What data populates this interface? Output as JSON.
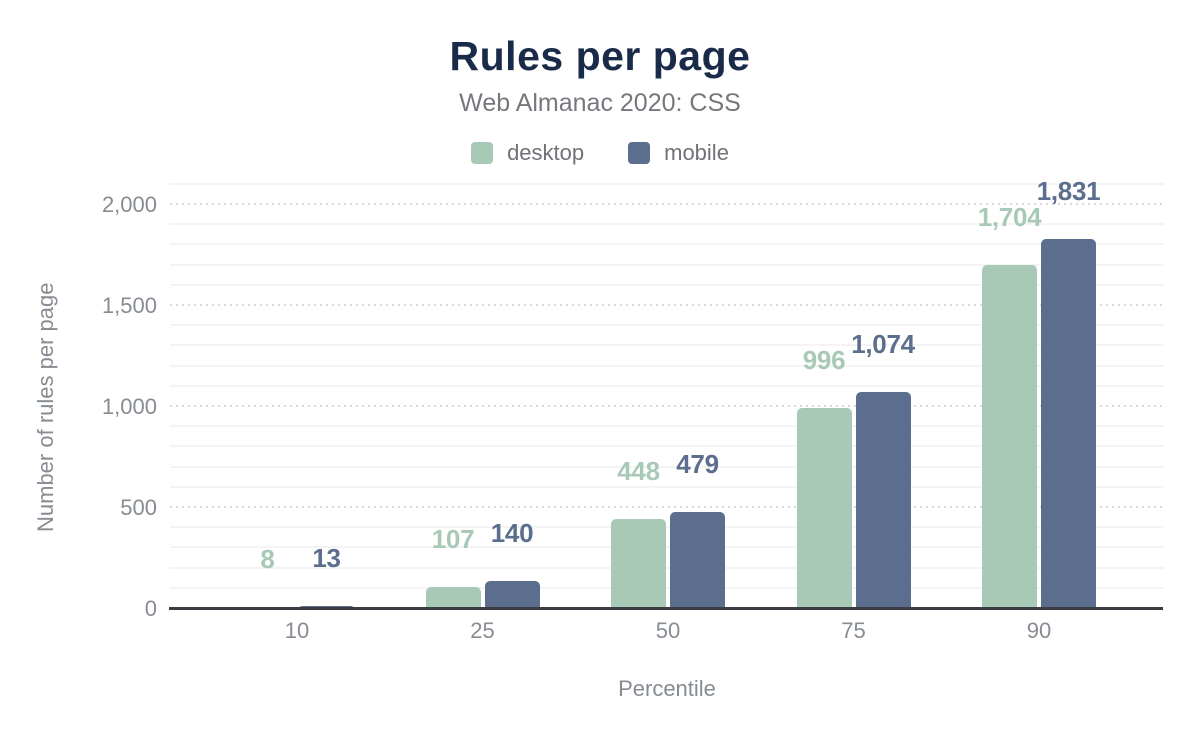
{
  "chart_data": {
    "type": "bar",
    "title": "Rules per page",
    "subtitle": "Web Almanac 2020: CSS",
    "xlabel": "Percentile",
    "ylabel": "Number of rules per page",
    "categories": [
      "10",
      "25",
      "50",
      "75",
      "90"
    ],
    "series": [
      {
        "name": "desktop",
        "color": "#a9c9b7",
        "values": [
          8,
          107,
          448,
          996,
          1704
        ],
        "labels": [
          "8",
          "107",
          "448",
          "996",
          "1,704"
        ]
      },
      {
        "name": "mobile",
        "color": "#5b6e8d",
        "values": [
          13,
          140,
          479,
          1074,
          1831
        ],
        "labels": [
          "13",
          "140",
          "479",
          "1,074",
          "1,831"
        ]
      }
    ],
    "ylim": [
      0,
      2000
    ],
    "yticks": [
      {
        "value": 0,
        "label": "0"
      },
      {
        "value": 500,
        "label": "500"
      },
      {
        "value": 1000,
        "label": "1,000"
      },
      {
        "value": 1500,
        "label": "1,500"
      },
      {
        "value": 2000,
        "label": "2,000"
      }
    ],
    "grid": {
      "minor_step": 100,
      "major_step": 500,
      "top_line": 2100,
      "minor_on": true,
      "major_dotted": true
    },
    "legend_position": "top-center"
  },
  "colors": {
    "title": "#1a2b49",
    "subtitle": "#75787d",
    "legend_text": "#6f7277",
    "axis_text": "#878c93",
    "axis_line": "#3a3d41",
    "grid_minor": "#f4f4f4",
    "grid_major_dot": "#d9d9d9",
    "background": "#ffffff"
  }
}
